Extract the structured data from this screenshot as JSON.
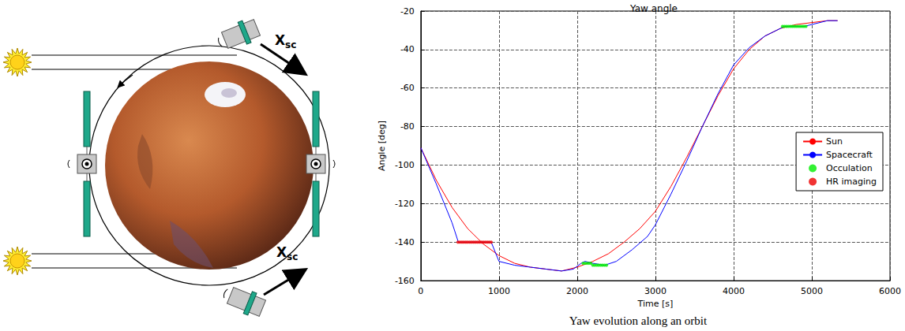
{
  "chart_data": {
    "type": "line",
    "title": "Yaw angle",
    "x_label": "Time [s]",
    "y_label": "Angle [deg]",
    "xlim": [
      0,
      6000
    ],
    "xticks": [
      0,
      1000,
      2000,
      3000,
      4000,
      5000,
      6000
    ],
    "ylim": [
      -160,
      -20
    ],
    "yticks": [
      -160,
      -140,
      -120,
      -100,
      -80,
      -60,
      -40,
      -20
    ],
    "grid": true,
    "legend": "right",
    "series": [
      {
        "name": "Sun",
        "type": "line",
        "color": "#ff0000",
        "x": [
          0,
          200,
          400,
          600,
          800,
          1000,
          1200,
          1400,
          1600,
          1800,
          2000,
          2200,
          2400,
          2600,
          2800,
          3000,
          3200,
          3400,
          3600,
          3800,
          4000,
          4200,
          4400,
          4600,
          4800,
          5000,
          5200,
          5330
        ],
        "values": [
          -91,
          -108,
          -122,
          -133,
          -141,
          -147,
          -151,
          -153,
          -154,
          -155,
          -153,
          -150,
          -146,
          -140,
          -133,
          -124,
          -111,
          -96,
          -80,
          -64,
          -50,
          -40,
          -33,
          -29,
          -27,
          -26,
          -25,
          -25
        ]
      },
      {
        "name": "Spacecraft",
        "type": "line",
        "color": "#0000ff",
        "x": [
          0,
          200,
          400,
          480,
          900,
          1000,
          1200,
          1400,
          1600,
          1800,
          1950,
          2050,
          2100,
          2200,
          2350,
          2500,
          2700,
          2900,
          3000,
          3200,
          3400,
          3600,
          3800,
          4000,
          4200,
          4400,
          4600,
          4650,
          4900,
          5000,
          5200,
          5330
        ],
        "values": [
          -91,
          -110,
          -130,
          -140,
          -140,
          -150,
          -152,
          -153,
          -154,
          -155,
          -154,
          -151,
          -150,
          -151,
          -152,
          -150,
          -144,
          -137,
          -131,
          -115,
          -98,
          -80,
          -63,
          -48,
          -39,
          -33,
          -29,
          -28,
          -28,
          -27,
          -25,
          -25
        ]
      },
      {
        "name": "Occulation",
        "type": "scatter",
        "color": "#00ee00",
        "marker": "circle",
        "x": [
          2075,
          2100,
          2125,
          2150,
          2175,
          2200,
          2225,
          2250,
          2275,
          2300,
          2325,
          2350,
          2375,
          4625,
          4650,
          4675,
          4700,
          4725,
          4750,
          4775,
          4800,
          4825,
          4850,
          4875,
          4900,
          4925
        ],
        "values": [
          -151,
          -151,
          -151,
          -151,
          -151,
          -152,
          -152,
          -152,
          -152,
          -152,
          -152,
          -152,
          -152,
          -28,
          -28,
          -28,
          -28,
          -28,
          -28,
          -28,
          -28,
          -28,
          -28,
          -28,
          -28,
          -28
        ]
      },
      {
        "name": "HR imaging",
        "type": "scatter",
        "color": "#ee0000",
        "marker": "circle",
        "x": [
          475,
          500,
          525,
          550,
          575,
          600,
          625,
          650,
          675,
          700,
          725,
          750,
          775,
          800,
          825,
          850,
          875,
          900
        ],
        "values": [
          -140,
          -140,
          -140,
          -140,
          -140,
          -140,
          -140,
          -140,
          -140,
          -140,
          -140,
          -140,
          -140,
          -140,
          -140,
          -140,
          -140,
          -140
        ]
      }
    ]
  },
  "diagram": {
    "labels": [
      {
        "text": "X",
        "subscript": "sc"
      },
      {
        "text": "X",
        "subscript": "sc"
      }
    ]
  },
  "caption": "Yaw evolution along an orbit"
}
